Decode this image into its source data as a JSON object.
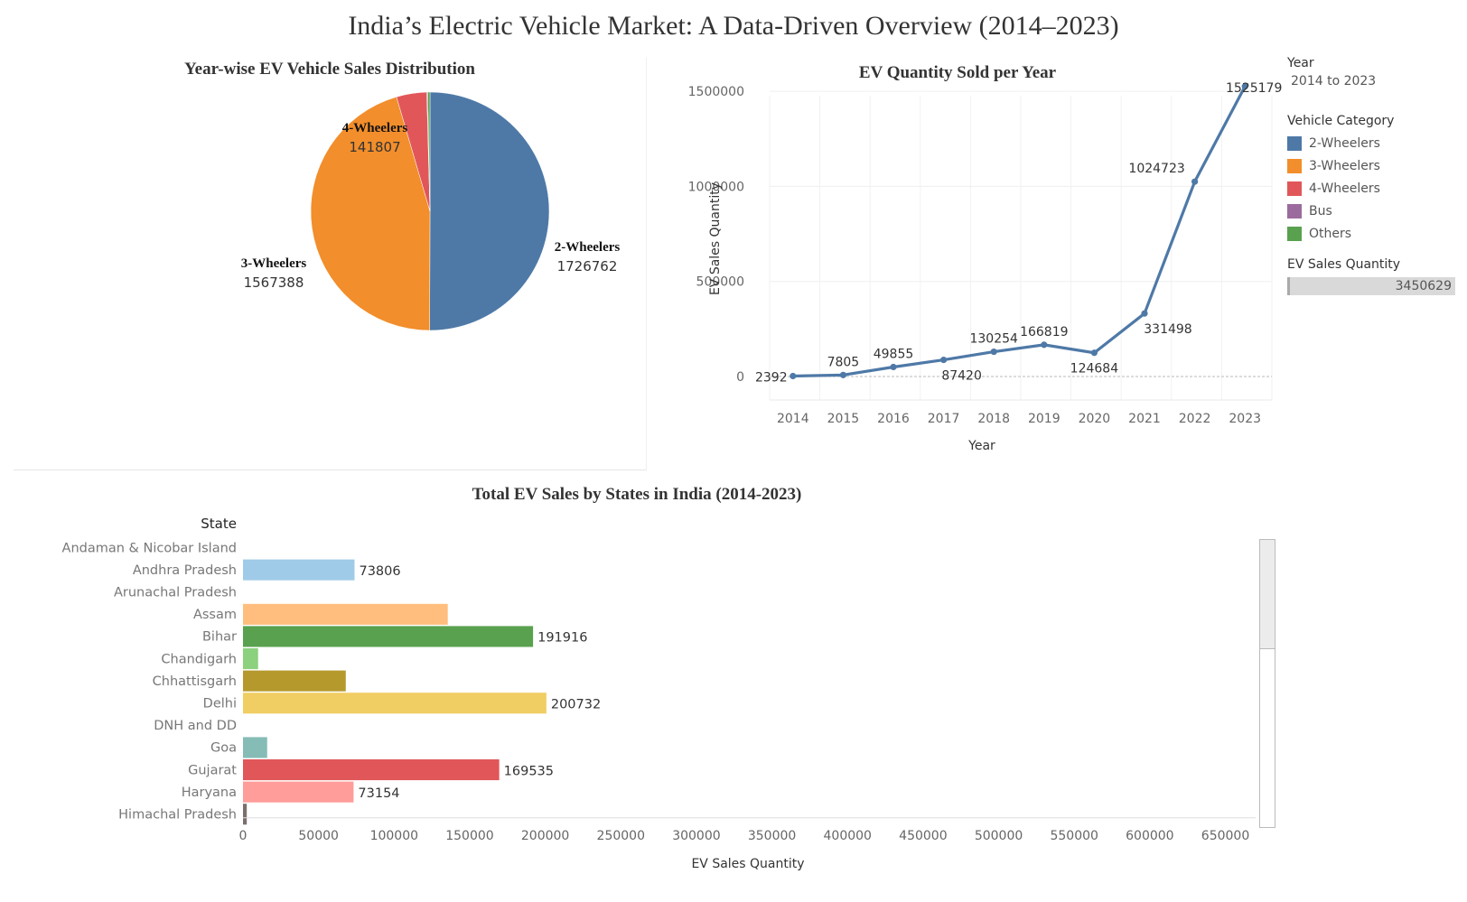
{
  "dashboard_title": "India’s Electric Vehicle Market: A Data-Driven Overview (2014–2023)",
  "legend": {
    "year_header": "Year",
    "year_value": "2014 to 2023",
    "category_header": "Vehicle Category",
    "categories": [
      {
        "label": "2-Wheelers",
        "color": "#4e79a7"
      },
      {
        "label": "3-Wheelers",
        "color": "#f28e2b"
      },
      {
        "label": "4-Wheelers",
        "color": "#e15759"
      },
      {
        "label": "Bus",
        "color": "#9c6b9e"
      },
      {
        "label": "Others",
        "color": "#59a14f"
      }
    ],
    "quantity_header": "EV Sales Quantity",
    "quantity_value": "3450629"
  },
  "chart_data": [
    {
      "type": "pie",
      "title": "Year-wise EV Vehicle Sales Distribution",
      "slices": [
        {
          "label": "2-Wheelers",
          "value": 1726762,
          "color": "#4e79a7",
          "show_label": true
        },
        {
          "label": "3-Wheelers",
          "value": 1567388,
          "color": "#f28e2b",
          "show_label": true
        },
        {
          "label": "4-Wheelers",
          "value": 141807,
          "color": "#e15759",
          "show_label": true
        },
        {
          "label": "Bus",
          "value": 4000,
          "color": "#9c6b9e",
          "show_label": false
        },
        {
          "label": "Others",
          "value": 10672,
          "color": "#59a14f",
          "show_label": false
        }
      ]
    },
    {
      "type": "line",
      "title": "EV Quantity Sold per Year",
      "xlabel": "Year",
      "ylabel": "EV Sales Quantity",
      "x": [
        "2014",
        "2015",
        "2016",
        "2017",
        "2018",
        "2019",
        "2020",
        "2021",
        "2022",
        "2023"
      ],
      "values": [
        2392,
        7805,
        49855,
        87420,
        130254,
        166819,
        124684,
        331498,
        1024723,
        1525179
      ],
      "point_labels": [
        "2392",
        "7805",
        "49855",
        "87420",
        "130254",
        "166819",
        "124684",
        "331498",
        "1024723",
        "1525179"
      ],
      "yticks": [
        0,
        500000,
        1000000,
        1500000
      ],
      "ylim": [
        0,
        1600000
      ],
      "color": "#4e79a7",
      "grid": true
    },
    {
      "type": "bar",
      "orientation": "horizontal",
      "title": "Total EV Sales by States in India (2014-2023)",
      "category_header": "State",
      "xlabel": "EV Sales Quantity",
      "xticks": [
        0,
        50000,
        100000,
        150000,
        200000,
        250000,
        300000,
        350000,
        400000,
        450000,
        500000,
        550000,
        600000,
        650000
      ],
      "xlim": [
        0,
        670000
      ],
      "bars": [
        {
          "state": "Andaman & Nicobar Island",
          "value": 0,
          "color": "#4e79a7",
          "label": ""
        },
        {
          "state": "Andhra Pradesh",
          "value": 73806,
          "color": "#a0cbe8",
          "label": "73806"
        },
        {
          "state": "Arunachal Pradesh",
          "value": 0,
          "color": "#f28e2b",
          "label": ""
        },
        {
          "state": "Assam",
          "value": 135500,
          "color": "#ffbe7d",
          "label": ""
        },
        {
          "state": "Bihar",
          "value": 191916,
          "color": "#59a14f",
          "label": "191916"
        },
        {
          "state": "Chandigarh",
          "value": 10000,
          "color": "#8cd17d",
          "label": ""
        },
        {
          "state": "Chhattisgarh",
          "value": 68000,
          "color": "#b6992d",
          "label": ""
        },
        {
          "state": "Delhi",
          "value": 200732,
          "color": "#f1ce63",
          "label": "200732"
        },
        {
          "state": "DNH and DD",
          "value": 0,
          "color": "#499894",
          "label": ""
        },
        {
          "state": "Goa",
          "value": 16000,
          "color": "#86bcb6",
          "label": ""
        },
        {
          "state": "Gujarat",
          "value": 169535,
          "color": "#e15759",
          "label": "169535"
        },
        {
          "state": "Haryana",
          "value": 73154,
          "color": "#ff9d9a",
          "label": "73154"
        },
        {
          "state": "Himachal Pradesh",
          "value": 2500,
          "color": "#79706e",
          "label": ""
        }
      ]
    }
  ]
}
